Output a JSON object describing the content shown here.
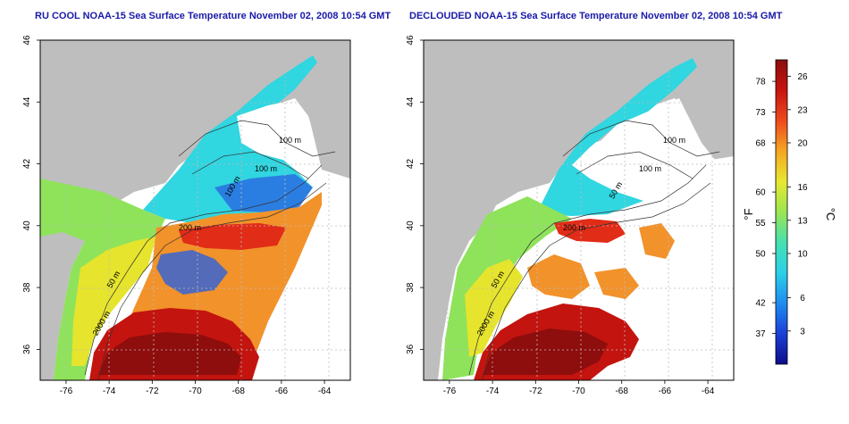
{
  "left_panel": {
    "title": "RU COOL NOAA-15 Sea Surface Temperature November 02, 2008 10:54 GMT",
    "contour_labels": [
      "100 m",
      "100 m",
      "100 m",
      "200 m",
      "50 m",
      "2000 m"
    ]
  },
  "right_panel": {
    "title": "DECLOUDED NOAA-15 Sea Surface Temperature November 02, 2008 10:54 GMT",
    "contour_labels": [
      "100 m",
      "100 m",
      "50 m",
      "200 m",
      "50 m",
      "2000 m"
    ]
  },
  "axes": {
    "x_ticks": [
      "-76",
      "-74",
      "-72",
      "-70",
      "-68",
      "-66",
      "-64"
    ],
    "y_ticks": [
      "36",
      "38",
      "40",
      "42",
      "44",
      "46"
    ],
    "x_values": [
      -76,
      -74,
      -72,
      -70,
      -68,
      -66,
      -64
    ],
    "y_values": [
      36,
      38,
      40,
      42,
      44,
      46
    ],
    "lon_range": [
      -77.2,
      -62.8
    ],
    "lat_range": [
      35,
      46
    ]
  },
  "colorbar": {
    "unit_f": "°F",
    "unit_c": "°C",
    "f_ticks": [
      "78",
      "73",
      "68",
      "60",
      "55",
      "50",
      "42",
      "37"
    ],
    "c_ticks": [
      "26",
      "23",
      "20",
      "16",
      "13",
      "10",
      "6",
      "3"
    ],
    "c_values": [
      26,
      23,
      20,
      16,
      13,
      10,
      6,
      3
    ],
    "f_values": [
      78,
      73,
      68,
      60,
      55,
      50,
      42,
      37
    ],
    "range_c": [
      0,
      27.5
    ],
    "colors": [
      "#0d0d8a",
      "#1a3fd8",
      "#1f8cf0",
      "#2ad0e8",
      "#46e0b0",
      "#9ae650",
      "#e8e830",
      "#f5a623",
      "#ee4a1c",
      "#c8140f",
      "#8a0d0d"
    ]
  }
}
